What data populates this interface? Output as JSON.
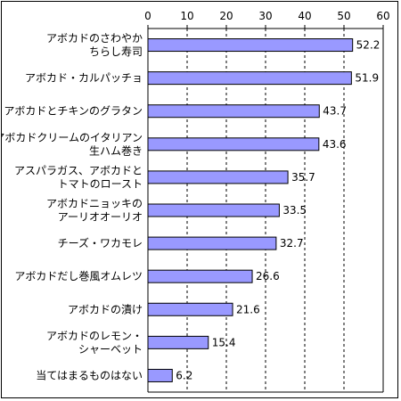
{
  "chart_data": {
    "type": "bar",
    "orientation": "horizontal",
    "categories": [
      [
        "アボカドのさわやか",
        "ちらし寿司"
      ],
      [
        "アボカド・カルパッチョ"
      ],
      [
        "アボカドとチキンのグラタン"
      ],
      [
        "アボカドクリームのイタリアン",
        "生ハム巻き"
      ],
      [
        "アスパラガス、アボカドと",
        "トマトのロースト"
      ],
      [
        "アボカドニョッキの",
        "アーリオオーリオ"
      ],
      [
        "チーズ・ワカモレ"
      ],
      [
        "アボカドだし巻風オムレツ"
      ],
      [
        "アボカドの漬け"
      ],
      [
        "アボカドのレモン・",
        "シャーベット"
      ],
      [
        "当てはまるものはない"
      ]
    ],
    "values": [
      52.2,
      51.9,
      43.7,
      43.6,
      35.7,
      33.5,
      32.7,
      26.6,
      21.6,
      15.4,
      6.2
    ],
    "value_labels": [
      "52.2",
      "51.9",
      "43.7",
      "43.6",
      "35.7",
      "33.5",
      "32.7",
      "26.6",
      "21.6",
      "15.4",
      "6.2"
    ],
    "xlim": [
      0,
      60
    ],
    "xticks": [
      0,
      10,
      20,
      30,
      40,
      50,
      60
    ],
    "xtick_labels": [
      "0",
      "10",
      "20",
      "30",
      "40",
      "50",
      "60"
    ],
    "axis_position": "top",
    "grid": "vertical dashed",
    "legend": "none",
    "title": "",
    "xlabel": "",
    "ylabel": "",
    "colors": {
      "bar_fill": "#9999ff",
      "bar_stroke": "#000000",
      "grid": "#000000",
      "background": "#ffffff"
    }
  }
}
